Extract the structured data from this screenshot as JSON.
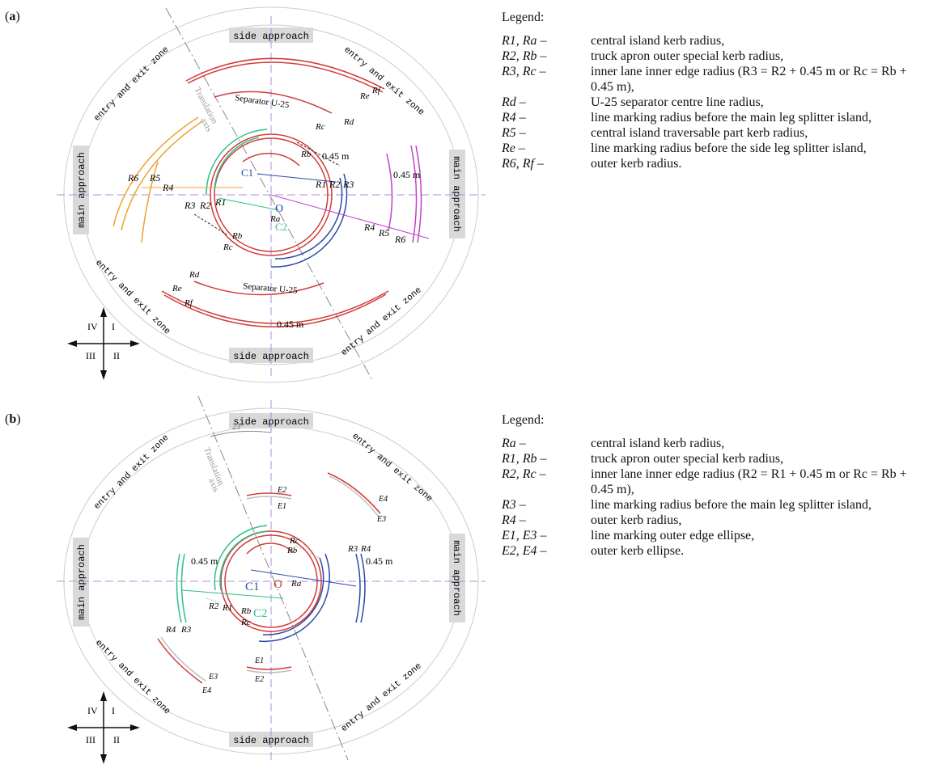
{
  "figure": {
    "a": {
      "label": "a",
      "zones": {
        "side_top": "side approach",
        "side_bottom": "side approach",
        "main_left": "main approach",
        "main_right": "main approach",
        "entry_exit": "entry and exit zone"
      },
      "axis_label_1": "Translation",
      "axis_label_2": "axis",
      "separator_label": "Separator U-25",
      "dim_045": "0.45 m",
      "centre_labels": [
        "C1",
        "C2",
        "O"
      ],
      "radius_labels": [
        "R1",
        "R2",
        "R3",
        "R4",
        "R5",
        "R6",
        "Ra",
        "Rb",
        "Rc",
        "Rd",
        "Re",
        "Rf"
      ],
      "quadrants": [
        "IV",
        "I",
        "III",
        "II"
      ],
      "legend_title": "Legend:",
      "legend": [
        {
          "sym": "R1, Ra –",
          "desc": "central island kerb radius,"
        },
        {
          "sym": "R2, Rb –",
          "desc": "truck apron outer special kerb radius,"
        },
        {
          "sym": "R3, Rc –",
          "desc": "inner lane inner edge radius (R3 = R2 + 0.45 m or Rc = Rb + 0.45 m),"
        },
        {
          "sym": "Rd –",
          "desc": "U-25 separator centre line radius,"
        },
        {
          "sym": "R4 –",
          "desc": "line marking radius before the main leg splitter island,"
        },
        {
          "sym": "R5 –",
          "desc": "central island traversable part kerb radius,"
        },
        {
          "sym": "Re –",
          "desc": "line marking radius before the side leg splitter island,"
        },
        {
          "sym": "R6, Rf –",
          "desc": "outer kerb radius."
        }
      ]
    },
    "b": {
      "label": "b",
      "zones": {
        "side_top": "side approach",
        "side_bottom": "side approach",
        "main_left": "main approach",
        "main_right": "main approach",
        "entry_exit": "entry and exit zone"
      },
      "axis_label_1": "Translation",
      "axis_label_2": "axis",
      "angle_label": "23°",
      "dim_045": "0.45 m",
      "centre_labels": [
        "C1",
        "C2",
        "O"
      ],
      "radius_labels": [
        "R1",
        "R2",
        "R3",
        "R4",
        "Ra",
        "Rb",
        "Rc",
        "E1",
        "E2",
        "E3",
        "E4"
      ],
      "quadrants": [
        "IV",
        "I",
        "III",
        "II"
      ],
      "legend_title": "Legend:",
      "legend": [
        {
          "sym": "Ra –",
          "desc": "central island kerb radius,"
        },
        {
          "sym": "R1, Rb –",
          "desc": "truck apron outer special kerb radius,"
        },
        {
          "sym": "R2, Rc –",
          "desc": "inner lane inner edge radius (R2 = R1 + 0.45 m or Rc = Rb + 0.45 m),"
        },
        {
          "sym": "R3 –",
          "desc": "line marking radius before the main leg splitter island,"
        },
        {
          "sym": "R4 –",
          "desc": "outer kerb radius,"
        },
        {
          "sym": "E1, E3 –",
          "desc": "line marking outer edge ellipse,"
        },
        {
          "sym": "E2, E4 –",
          "desc": "outer kerb ellipse."
        }
      ]
    },
    "colors": {
      "red": "#d23a3a",
      "green": "#2fbf8a",
      "blue": "#2a4aa8",
      "orange": "#f0a030",
      "magenta": "#c040c8",
      "zone_fill": "#d9d9d9",
      "axis": "#b38cd8"
    }
  }
}
